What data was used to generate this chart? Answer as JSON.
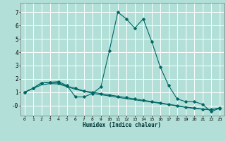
{
  "xlabel": "Humidex (Indice chaleur)",
  "bg_color": "#b2e0d8",
  "grid_color": "#ffffff",
  "line_color": "#006666",
  "xlim": [
    -0.5,
    23.5
  ],
  "ylim": [
    -0.75,
    7.7
  ],
  "xticks": [
    0,
    1,
    2,
    3,
    4,
    5,
    6,
    7,
    8,
    9,
    10,
    11,
    12,
    13,
    14,
    15,
    16,
    17,
    18,
    19,
    20,
    21,
    22,
    23
  ],
  "yticks": [
    0,
    1,
    2,
    3,
    4,
    5,
    6,
    7
  ],
  "ytick_labels": [
    "-0",
    "1",
    "2",
    "3",
    "4",
    "5",
    "6",
    "7"
  ],
  "series1_x": [
    0,
    1,
    2,
    3,
    4,
    5,
    6,
    7,
    8,
    9,
    10,
    11,
    12,
    13,
    14,
    15,
    16,
    17,
    18,
    19,
    20,
    21,
    22,
    23
  ],
  "series1_y": [
    1.0,
    1.3,
    1.7,
    1.75,
    1.8,
    1.5,
    0.65,
    0.65,
    0.9,
    1.4,
    4.1,
    7.0,
    6.5,
    5.8,
    6.5,
    4.8,
    2.9,
    1.5,
    0.5,
    0.3,
    0.3,
    0.1,
    -0.45,
    -0.2
  ],
  "series2_x": [
    0,
    1,
    2,
    3,
    4,
    5,
    6,
    7,
    8,
    9,
    10,
    11,
    12,
    13,
    14,
    15,
    16,
    17,
    18,
    19,
    20,
    21,
    22,
    23
  ],
  "series2_y": [
    1.0,
    1.3,
    1.7,
    1.75,
    1.7,
    1.45,
    1.3,
    1.1,
    1.0,
    0.9,
    0.8,
    0.7,
    0.6,
    0.5,
    0.4,
    0.3,
    0.2,
    0.1,
    0.0,
    -0.1,
    -0.18,
    -0.25,
    -0.3,
    -0.18
  ],
  "series3_x": [
    0,
    1,
    2,
    3,
    4,
    5,
    6,
    7,
    8,
    9,
    10,
    11,
    12,
    13,
    14,
    15,
    16,
    17,
    18,
    19,
    20,
    21,
    22,
    23
  ],
  "series3_y": [
    1.0,
    1.28,
    1.55,
    1.65,
    1.62,
    1.42,
    1.22,
    1.08,
    0.92,
    0.82,
    0.72,
    0.62,
    0.52,
    0.43,
    0.35,
    0.26,
    0.17,
    0.07,
    -0.03,
    -0.13,
    -0.21,
    -0.27,
    -0.32,
    -0.18
  ]
}
